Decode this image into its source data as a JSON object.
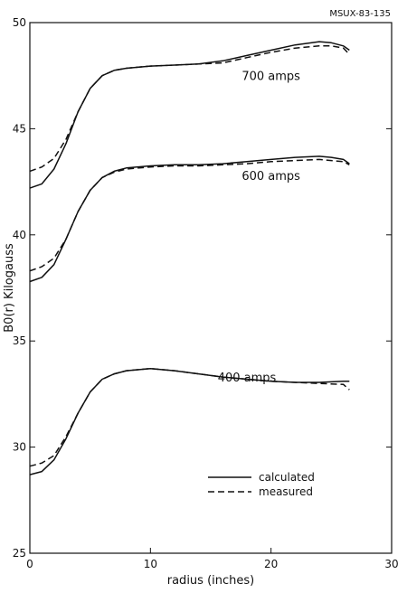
{
  "report_id": "MSUX-83-135",
  "chart_data": {
    "type": "line",
    "title": "",
    "xlabel": "radius (inches)",
    "ylabel": "B0(r) Kilogauss",
    "xlim": [
      0,
      30
    ],
    "ylim": [
      25,
      50
    ],
    "xticks": [
      0,
      10,
      20,
      30
    ],
    "yticks": [
      25,
      30,
      35,
      40,
      45,
      50
    ],
    "grid": false,
    "legend": {
      "placement": "lower-right",
      "entries": [
        {
          "label": "calculated",
          "style": "solid"
        },
        {
          "label": "measured",
          "style": "dashed"
        }
      ]
    },
    "curves": [
      {
        "name": "700 amps",
        "label_at": [
          20,
          47.3
        ],
        "calculated": [
          [
            0,
            42.2
          ],
          [
            1,
            42.4
          ],
          [
            2,
            43.1
          ],
          [
            3,
            44.3
          ],
          [
            4,
            45.8
          ],
          [
            5,
            46.9
          ],
          [
            6,
            47.5
          ],
          [
            7,
            47.75
          ],
          [
            8,
            47.85
          ],
          [
            10,
            47.95
          ],
          [
            12,
            48.0
          ],
          [
            14,
            48.05
          ],
          [
            16,
            48.2
          ],
          [
            18,
            48.45
          ],
          [
            20,
            48.7
          ],
          [
            22,
            48.95
          ],
          [
            24,
            49.1
          ],
          [
            25,
            49.05
          ],
          [
            26,
            48.9
          ],
          [
            26.5,
            48.7
          ]
        ],
        "measured": [
          [
            0,
            43.0
          ],
          [
            1,
            43.2
          ],
          [
            2,
            43.6
          ],
          [
            3,
            44.5
          ],
          [
            4,
            45.8
          ],
          [
            5,
            46.9
          ],
          [
            6,
            47.5
          ],
          [
            7,
            47.75
          ],
          [
            8,
            47.85
          ],
          [
            10,
            47.95
          ],
          [
            12,
            48.0
          ],
          [
            14,
            48.05
          ],
          [
            16,
            48.1
          ],
          [
            18,
            48.35
          ],
          [
            20,
            48.6
          ],
          [
            22,
            48.8
          ],
          [
            24,
            48.9
          ],
          [
            25,
            48.9
          ],
          [
            26,
            48.8
          ],
          [
            26.5,
            48.5
          ]
        ]
      },
      {
        "name": "600 amps",
        "label_at": [
          20,
          42.6
        ],
        "calculated": [
          [
            0,
            37.8
          ],
          [
            1,
            38.0
          ],
          [
            2,
            38.6
          ],
          [
            3,
            39.8
          ],
          [
            4,
            41.1
          ],
          [
            5,
            42.1
          ],
          [
            6,
            42.7
          ],
          [
            7,
            43.0
          ],
          [
            8,
            43.15
          ],
          [
            10,
            43.25
          ],
          [
            12,
            43.3
          ],
          [
            14,
            43.3
          ],
          [
            16,
            43.35
          ],
          [
            18,
            43.45
          ],
          [
            20,
            43.55
          ],
          [
            22,
            43.65
          ],
          [
            24,
            43.7
          ],
          [
            25,
            43.65
          ],
          [
            26,
            43.55
          ],
          [
            26.5,
            43.35
          ]
        ],
        "measured": [
          [
            0,
            38.3
          ],
          [
            1,
            38.5
          ],
          [
            2,
            38.9
          ],
          [
            3,
            39.8
          ],
          [
            4,
            41.1
          ],
          [
            5,
            42.1
          ],
          [
            6,
            42.7
          ],
          [
            7,
            42.95
          ],
          [
            8,
            43.1
          ],
          [
            10,
            43.2
          ],
          [
            12,
            43.25
          ],
          [
            14,
            43.25
          ],
          [
            16,
            43.3
          ],
          [
            18,
            43.35
          ],
          [
            20,
            43.45
          ],
          [
            22,
            43.5
          ],
          [
            24,
            43.55
          ],
          [
            25,
            43.5
          ],
          [
            26,
            43.45
          ],
          [
            26.5,
            43.3
          ]
        ]
      },
      {
        "name": "400 amps",
        "label_at": [
          18,
          33.1
        ],
        "calculated": [
          [
            0,
            28.7
          ],
          [
            1,
            28.85
          ],
          [
            2,
            29.4
          ],
          [
            3,
            30.4
          ],
          [
            4,
            31.6
          ],
          [
            5,
            32.6
          ],
          [
            6,
            33.2
          ],
          [
            7,
            33.45
          ],
          [
            8,
            33.6
          ],
          [
            10,
            33.7
          ],
          [
            12,
            33.6
          ],
          [
            14,
            33.45
          ],
          [
            16,
            33.3
          ],
          [
            18,
            33.2
          ],
          [
            20,
            33.1
          ],
          [
            22,
            33.05
          ],
          [
            24,
            33.05
          ],
          [
            26,
            33.1
          ],
          [
            26.5,
            33.1
          ]
        ],
        "measured": [
          [
            0,
            29.1
          ],
          [
            1,
            29.25
          ],
          [
            2,
            29.6
          ],
          [
            3,
            30.5
          ],
          [
            4,
            31.6
          ],
          [
            5,
            32.6
          ],
          [
            6,
            33.2
          ],
          [
            7,
            33.45
          ],
          [
            8,
            33.6
          ],
          [
            10,
            33.7
          ],
          [
            12,
            33.6
          ],
          [
            14,
            33.45
          ],
          [
            16,
            33.3
          ],
          [
            18,
            33.2
          ],
          [
            20,
            33.1
          ],
          [
            22,
            33.05
          ],
          [
            24,
            33.0
          ],
          [
            26,
            32.95
          ],
          [
            26.5,
            32.7
          ]
        ]
      }
    ]
  }
}
